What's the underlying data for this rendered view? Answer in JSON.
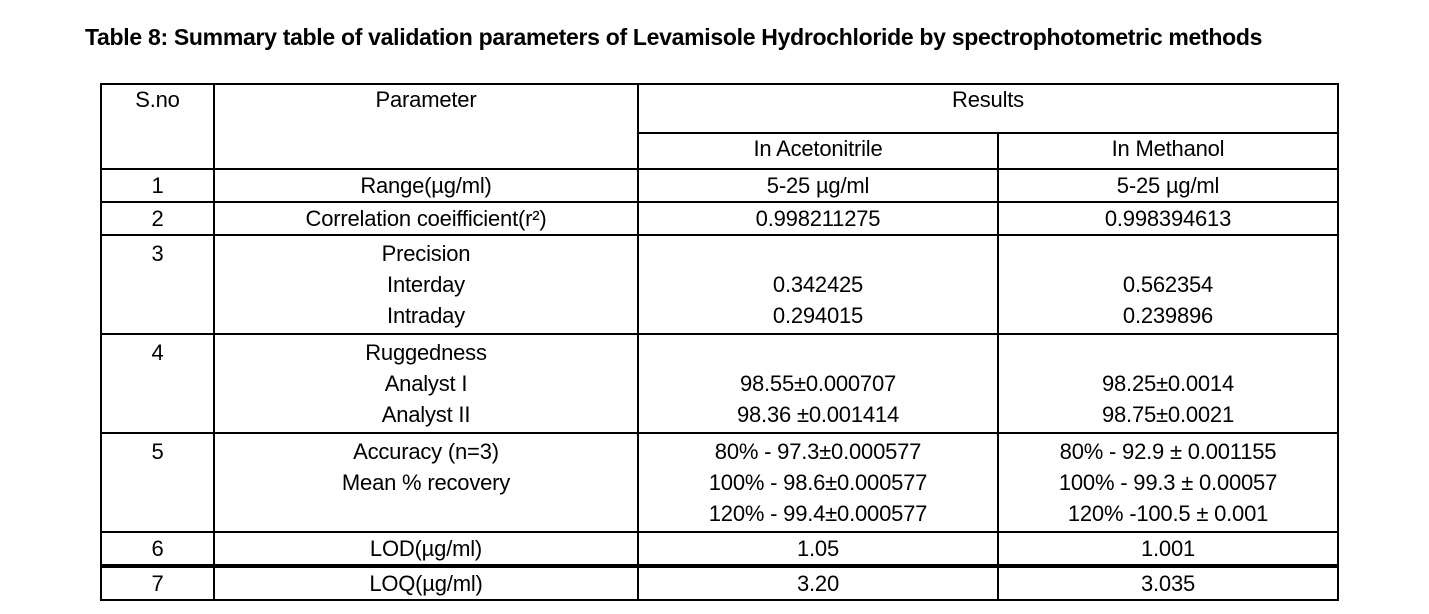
{
  "colors": {
    "text": "#000000",
    "background": "#ffffff",
    "border": "#000000"
  },
  "title": "Table 8: Summary table of validation parameters of Levamisole Hydrochloride by spectrophotometric methods",
  "table": {
    "headers": {
      "sno": "S.no",
      "parameter": "Parameter",
      "results": "Results",
      "col1": "In Acetonitrile",
      "col2": "In Methanol"
    },
    "rows": [
      {
        "sno": "1",
        "param": [
          "Range(µg/ml)"
        ],
        "acetonitrile": [
          "5-25 µg/ml"
        ],
        "methanol": [
          "5-25 µg/ml"
        ]
      },
      {
        "sno": "2",
        "param": [
          "Correlation coeifficient(r²)"
        ],
        "acetonitrile": [
          "0.998211275"
        ],
        "methanol": [
          "0.998394613"
        ]
      },
      {
        "sno": "3",
        "param": [
          "Precision",
          "Interday",
          "Intraday"
        ],
        "acetonitrile": [
          "",
          "0.342425",
          "0.294015"
        ],
        "methanol": [
          "",
          "0.562354",
          "0.239896"
        ]
      },
      {
        "sno": "4",
        "param": [
          "Ruggedness",
          "Analyst I",
          "Analyst II"
        ],
        "acetonitrile": [
          "",
          "98.55±0.000707",
          "98.36 ±0.001414"
        ],
        "methanol": [
          "",
          "98.25±0.0014",
          "98.75±0.0021"
        ]
      },
      {
        "sno": "5",
        "param": [
          "Accuracy  (n=3)",
          "Mean % recovery",
          ""
        ],
        "acetonitrile": [
          "80% - 97.3±0.000577",
          "100% - 98.6±0.000577",
          "120% - 99.4±0.000577"
        ],
        "methanol": [
          "80% - 92.9 ± 0.001155",
          "100% - 99.3 ± 0.00057",
          "120% -100.5 ± 0.001"
        ]
      },
      {
        "sno": "6",
        "param": [
          "LOD(µg/ml)"
        ],
        "acetonitrile": [
          "1.05"
        ],
        "methanol": [
          "1.001"
        ]
      },
      {
        "sno": "7",
        "param": [
          "LOQ(µg/ml)"
        ],
        "acetonitrile": [
          "3.20"
        ],
        "methanol": [
          "3.035"
        ]
      }
    ]
  }
}
